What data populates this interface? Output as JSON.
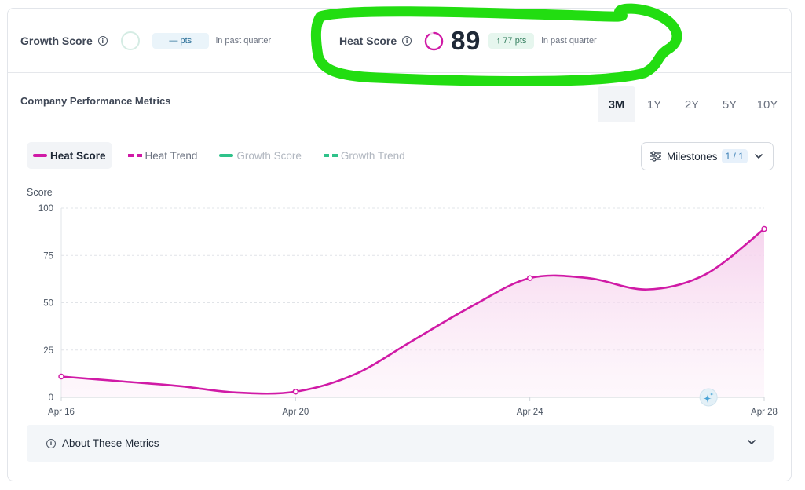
{
  "growth": {
    "label": "Growth Score",
    "change": "— pts",
    "period": "in past quarter"
  },
  "heat": {
    "label": "Heat Score",
    "value": "89",
    "change": "↑ 77 pts",
    "period": "in past quarter",
    "ring_fraction": 0.89
  },
  "metrics": {
    "title": "Company Performance Metrics"
  },
  "ranges": [
    "3M",
    "1Y",
    "2Y",
    "5Y",
    "10Y"
  ],
  "active_range": "3M",
  "legend": {
    "heat_score": "Heat Score",
    "heat_trend": "Heat Trend",
    "growth_score": "Growth Score",
    "growth_trend": "Growth Trend"
  },
  "milestones": {
    "label": "Milestones",
    "count": "1 / 1"
  },
  "about": {
    "label": "About These Metrics"
  },
  "colors": {
    "heat": "#d01aa6",
    "growth": "#2fc28a",
    "heat_fill": "#f7d8ef",
    "highlight": "#22dd11"
  },
  "chart_data": {
    "type": "area",
    "ylabel": "Score",
    "ylim": [
      0,
      100
    ],
    "yticks": [
      0,
      25,
      50,
      75,
      100
    ],
    "xticks": [
      "Apr 16",
      "Apr 20",
      "Apr 24",
      "Apr 28"
    ],
    "grid": true,
    "legend_position": "top-left",
    "series": [
      {
        "name": "Heat Score",
        "color": "#d01aa6",
        "x": [
          16,
          17,
          18,
          19,
          20,
          21,
          22,
          23,
          24,
          25,
          26,
          27,
          28
        ],
        "values": [
          11,
          8.5,
          6,
          2.5,
          3,
          12,
          30,
          48,
          63,
          63,
          57,
          65,
          89
        ],
        "markers_at": [
          16,
          20,
          24,
          28
        ]
      }
    ],
    "milestone_marker_x": 27.05
  }
}
